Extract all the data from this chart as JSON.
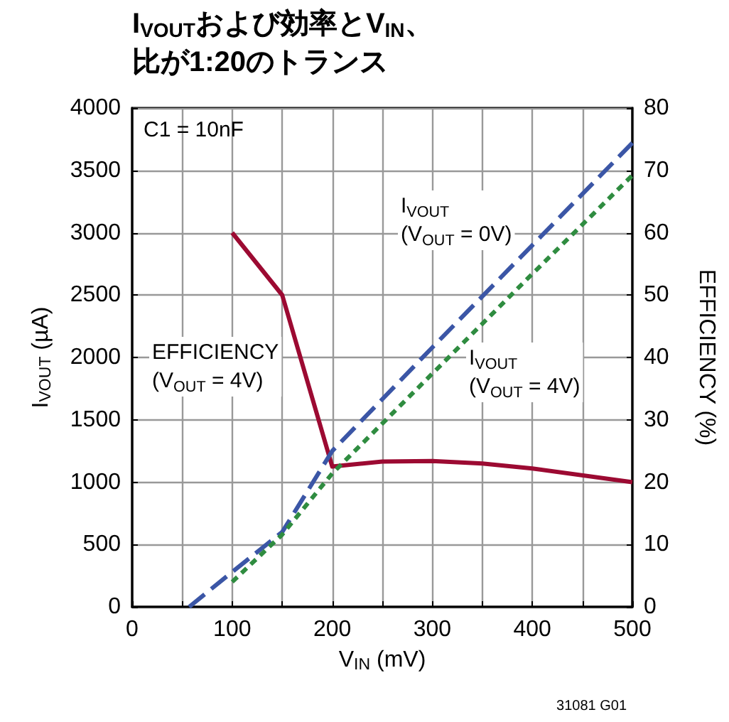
{
  "chart_data": {
    "type": "line",
    "title": "I$_{VOUT}$および効率とV$_{IN}$、比が1:20のトランス",
    "xlabel": "V$_{IN}$ (mV)",
    "ylabel": "I$_{VOUT}$ (µA)",
    "y2label": "EFFICIENCY (%)",
    "xlim": [
      0,
      500
    ],
    "xticks": [
      0,
      {
        "value": 50,
        "label": null
      },
      100,
      {
        "value": 150,
        "label": null
      },
      200,
      {
        "value": 250,
        "label": null
      },
      300,
      {
        "value": 350,
        "label": null
      },
      400,
      {
        "value": 450,
        "label": null
      },
      500
    ],
    "ylim": [
      0,
      4000
    ],
    "yticks": [
      0,
      500,
      1000,
      1500,
      2000,
      2500,
      3000,
      3500,
      4000
    ],
    "y2lim": [
      0,
      80
    ],
    "y2ticks": [
      0,
      10,
      20,
      30,
      40,
      50,
      60,
      70,
      80
    ],
    "grid": true,
    "marker": "none",
    "series": [
      {
        "color": "#3b56a6",
        "line_style": "dashed",
        "x": [
          57,
          100,
          150,
          200,
          300,
          400,
          500
        ],
        "values": [
          0,
          280,
          600,
          1250,
          2080,
          2900,
          3720
        ]
      },
      {
        "color": "#2f8c40",
        "line_style": "dotted",
        "x": [
          100,
          150,
          200,
          300,
          400,
          500
        ],
        "values": [
          200,
          580,
          1070,
          1870,
          2670,
          3460
        ]
      },
      {
        "color": "#9c0a32",
        "line_style": "solid",
        "axis": "y2",
        "x": [
          100,
          150,
          200,
          250,
          300,
          350,
          400,
          500
        ],
        "values": [
          60,
          50,
          22.5,
          23.3,
          23.4,
          23,
          22.2,
          20
        ]
      }
    ],
    "annotations": [
      "C1 = 10nF",
      "31081 G01",
      "EFFICIENCY\n(V$_{OUT}$ = 4V)",
      "I$_{VOUT}$\n(V$_{OUT}$ = 0V)",
      "I$_{VOUT}$\n(V$_{OUT}$ = 4V)"
    ]
  }
}
